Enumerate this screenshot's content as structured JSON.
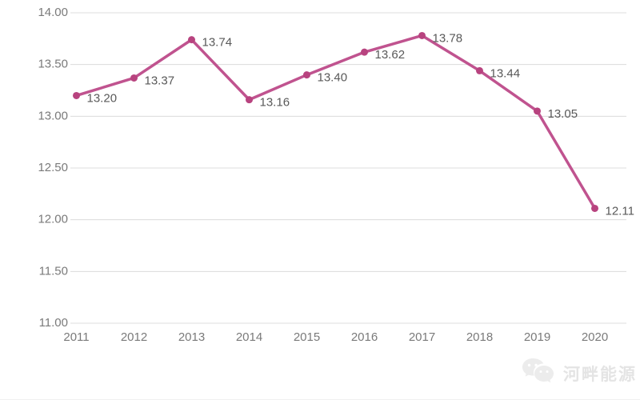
{
  "chart_data": {
    "type": "line",
    "title": "",
    "xlabel": "",
    "ylabel": "",
    "categories": [
      "2011",
      "2012",
      "2013",
      "2014",
      "2015",
      "2016",
      "2017",
      "2018",
      "2019",
      "2020"
    ],
    "series": [
      {
        "name": "value",
        "values": [
          13.2,
          13.37,
          13.74,
          13.16,
          13.4,
          13.62,
          13.78,
          13.44,
          13.05,
          12.11
        ],
        "point_labels": [
          "13.20",
          "13.37",
          "13.74",
          "13.16",
          "13.40",
          "13.62",
          "13.78",
          "13.44",
          "13.05",
          "12.11"
        ]
      }
    ],
    "ylim": [
      11.0,
      14.0
    ],
    "yticks": [
      14.0,
      13.5,
      13.0,
      12.5,
      12.0,
      11.5,
      11.0
    ],
    "ytick_labels": [
      "14.00",
      "13.50",
      "13.00",
      "12.50",
      "12.00",
      "11.50",
      "11.00"
    ],
    "grid": true,
    "legend": "none",
    "colors": {
      "line": "#c0538f",
      "marker": "#b8437f",
      "point_label": "#595959",
      "axis_label": "#7a7a7a",
      "gridline": "#dcdcdc"
    }
  },
  "watermark": {
    "text": "河畔能源",
    "logo": "chat-bubbles-logo"
  }
}
